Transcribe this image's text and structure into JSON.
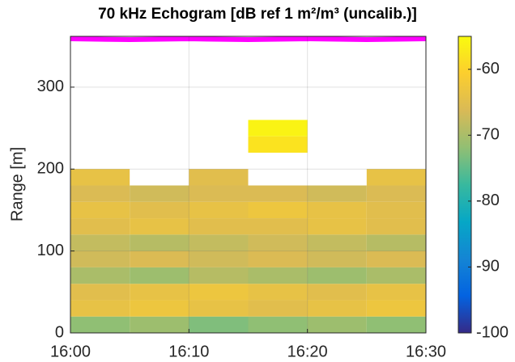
{
  "chart_data": {
    "type": "echogram",
    "title": "70 kHz Echogram [dB ref 1 m²/m³ (uncalib.)]",
    "y_label": "Range [m]",
    "colormap": "parula",
    "grid": true,
    "xlim": [
      "16:00",
      "16:30"
    ],
    "xticks": [
      "16:00",
      "16:10",
      "16:20",
      "16:30"
    ],
    "ylim": [
      0,
      362
    ],
    "yticks": [
      0,
      100,
      200,
      300
    ],
    "clim": [
      -100,
      -55
    ],
    "cticks": [
      -100,
      -90,
      -80,
      -70,
      -60
    ],
    "x_edges": [
      "16:00",
      "16:05",
      "16:10",
      "16:15",
      "16:20",
      "16:25",
      "16:30"
    ],
    "y_edges": [
      0,
      20,
      40,
      60,
      80,
      100,
      120,
      140,
      160,
      180,
      200,
      220,
      240,
      260,
      280,
      300,
      320,
      340,
      360
    ],
    "values": [
      [
        -72,
        -71,
        -73,
        -72,
        -71,
        -72
      ],
      [
        -64,
        -63,
        -64,
        -65,
        -64,
        -63
      ],
      [
        -65,
        -64,
        -63,
        -64,
        -65,
        -64
      ],
      [
        -70,
        -71,
        -69,
        -70,
        -71,
        -70
      ],
      [
        -67,
        -66,
        -67,
        -66,
        -67,
        -66
      ],
      [
        -68,
        -69,
        -68,
        -67,
        -68,
        -69
      ],
      [
        -65,
        -64,
        -65,
        -65,
        -64,
        -65
      ],
      [
        -64,
        -65,
        -64,
        -63,
        -64,
        -65
      ],
      [
        -66,
        -67,
        -66,
        -66,
        -67,
        -66
      ],
      [
        -64,
        null,
        -65,
        null,
        null,
        -64
      ],
      [
        null,
        null,
        null,
        null,
        null,
        null
      ],
      [
        null,
        null,
        null,
        -58,
        null,
        null
      ],
      [
        null,
        null,
        null,
        -56,
        null,
        null
      ],
      [
        null,
        null,
        null,
        null,
        null,
        null
      ],
      [
        null,
        null,
        null,
        null,
        null,
        null
      ],
      [
        null,
        null,
        null,
        null,
        null,
        null
      ],
      [
        null,
        null,
        null,
        null,
        null,
        null
      ],
      [
        null,
        null,
        null,
        null,
        null,
        null
      ]
    ],
    "bottom_line": {
      "color": "#ff00ff",
      "x": [
        "16:00",
        "16:05",
        "16:10",
        "16:15",
        "16:20",
        "16:25",
        "16:30"
      ],
      "values": [
        359,
        358,
        359,
        358,
        359,
        358,
        359
      ]
    }
  }
}
